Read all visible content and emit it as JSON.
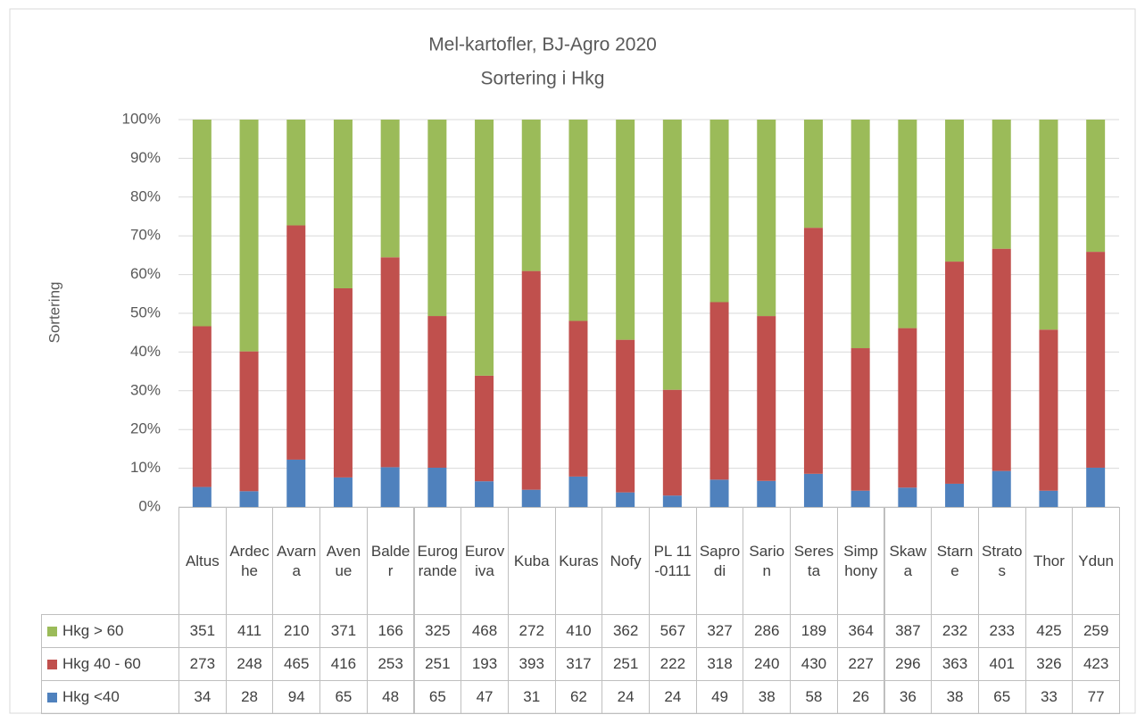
{
  "chart_data": {
    "type": "bar",
    "stacking": "percent",
    "title": "Mel-kartofler, BJ-Agro 2020",
    "subtitle": "Sortering i Hkg",
    "y_label": "Sortering",
    "categories": [
      "Altus",
      "Ardeche",
      "Avarna",
      "Avenue",
      "Balder",
      "Eurogrande",
      "Euroviva",
      "Kuba",
      "Kuras",
      "Nofy",
      "PL 11-0111",
      "Saprodi",
      "Sarion",
      "Seresta",
      "Simphony",
      "Skawa",
      "Starne",
      "Stratos",
      "Thor",
      "Ydun"
    ],
    "series": [
      {
        "name": "Hkg > 60",
        "color": "#9bbb59",
        "values": [
          351,
          411,
          210,
          371,
          166,
          325,
          468,
          272,
          410,
          362,
          567,
          327,
          286,
          189,
          364,
          387,
          232,
          233,
          425,
          259
        ]
      },
      {
        "name": "Hkg 40 - 60",
        "color": "#c0504d",
        "values": [
          273,
          248,
          465,
          416,
          253,
          251,
          193,
          393,
          317,
          251,
          222,
          318,
          240,
          430,
          227,
          296,
          363,
          401,
          326,
          423
        ]
      },
      {
        "name": "Hkg <40",
        "color": "#4f81bd",
        "values": [
          34,
          28,
          94,
          65,
          48,
          65,
          47,
          31,
          62,
          24,
          24,
          49,
          38,
          58,
          26,
          36,
          38,
          65,
          33,
          77
        ]
      }
    ],
    "ylim": [
      0,
      100
    ],
    "yticks": [
      {
        "value": 0,
        "label": "0%"
      },
      {
        "value": 10,
        "label": "10%"
      },
      {
        "value": 20,
        "label": "20%"
      },
      {
        "value": 30,
        "label": "30%"
      },
      {
        "value": 40,
        "label": "40%"
      },
      {
        "value": 50,
        "label": "50%"
      },
      {
        "value": 60,
        "label": "60%"
      },
      {
        "value": 70,
        "label": "70%"
      },
      {
        "value": 80,
        "label": "80%"
      },
      {
        "value": 90,
        "label": "90%"
      },
      {
        "value": 100,
        "label": "100%"
      }
    ],
    "grid": true,
    "data_table": true
  }
}
